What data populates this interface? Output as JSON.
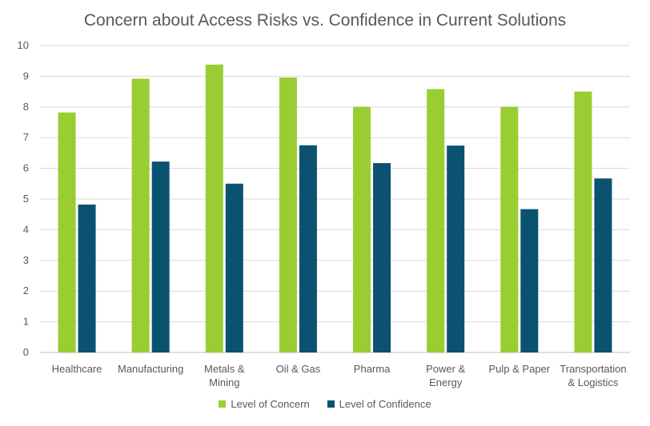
{
  "chart_data": {
    "type": "bar",
    "title": "Concern about Access Risks vs. Confidence in Current Solutions",
    "xlabel": "",
    "ylabel": "",
    "ylim": [
      0,
      10
    ],
    "yticks": [
      "0",
      "1",
      "2",
      "3",
      "4",
      "5",
      "6",
      "7",
      "8",
      "9",
      "10"
    ],
    "grid": true,
    "legend": "bottom",
    "categories": [
      [
        "Healthcare"
      ],
      [
        "Manufacturing"
      ],
      [
        "Metals &",
        "Mining"
      ],
      [
        "Oil & Gas"
      ],
      [
        "Pharma"
      ],
      [
        "Power &",
        "Energy"
      ],
      [
        "Pulp & Paper"
      ],
      [
        "Transportation",
        "& Logistics"
      ]
    ],
    "series": [
      {
        "name": "Level of Concern",
        "color": "#9ACD32",
        "values": [
          7.82,
          8.92,
          9.38,
          8.96,
          8.0,
          8.58,
          8.0,
          8.5
        ]
      },
      {
        "name": "Level of Confidence",
        "color": "#0B5270",
        "values": [
          4.82,
          6.22,
          5.5,
          6.75,
          6.17,
          6.74,
          4.67,
          5.67
        ]
      }
    ]
  }
}
